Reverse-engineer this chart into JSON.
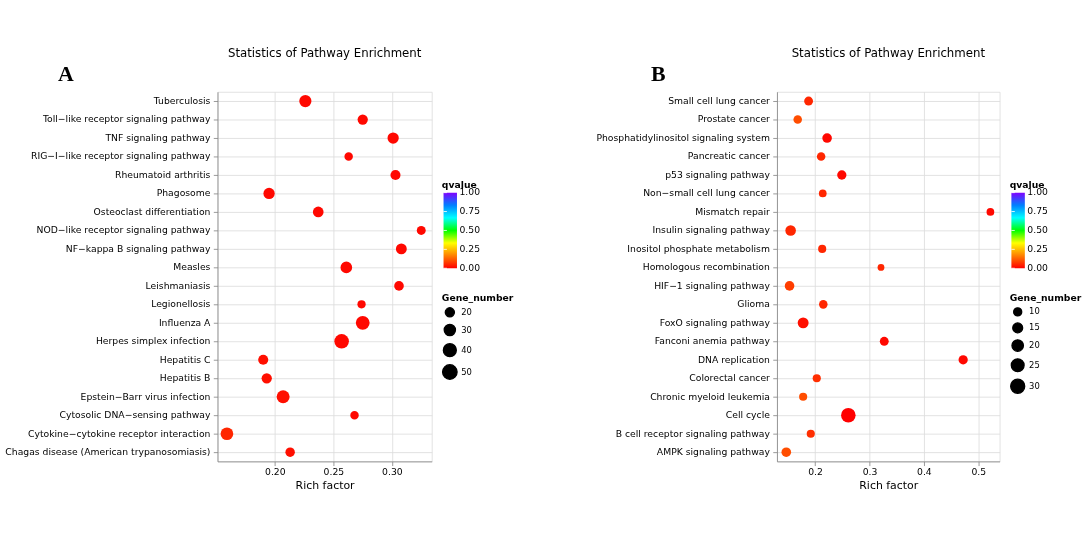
{
  "chart_data": [
    {
      "type": "bubble",
      "orientation": "horizontal",
      "title": "Statistics of Pathway Enrichment",
      "xlabel": "Rich factor",
      "clabel": "qvalue",
      "legend_title": "Gene_number",
      "annotations": [
        "A"
      ],
      "categories": [
        "Tuberculosis",
        "Toll−like receptor signaling pathway",
        "TNF signaling pathway",
        "RIG−I−like receptor signaling pathway",
        "Rheumatoid arthritis",
        "Phagosome",
        "Osteoclast differentiation",
        "NOD−like receptor signaling pathway",
        "NF−kappa B signaling pathway",
        "Measles",
        "Leishmaniasis",
        "Legionellosis",
        "Influenza A",
        "Herpes simplex infection",
        "Hepatitis C",
        "Hepatitis B",
        "Epstein−Barr virus infection",
        "Cytosolic DNA−sensing pathway",
        "Cytokine−cytokine receptor interaction",
        "Chagas disease (American trypanosomiasis)"
      ],
      "values": [
        0.226,
        0.275,
        0.301,
        0.263,
        0.303,
        0.195,
        0.237,
        0.325,
        0.308,
        0.261,
        0.306,
        0.274,
        0.275,
        0.257,
        0.19,
        0.193,
        0.207,
        0.268,
        0.159,
        0.213
      ],
      "sizes": [
        35,
        25,
        30,
        17,
        24,
        30,
        27,
        19,
        28,
        32,
        22,
        16,
        45,
        50,
        24,
        25,
        40,
        17,
        38,
        21
      ],
      "cvalues": [
        0.01,
        0.01,
        0.01,
        0.01,
        0.01,
        0.01,
        0.01,
        0.01,
        0.01,
        0.01,
        0.01,
        0.01,
        0.01,
        0.01,
        0.02,
        0.02,
        0.02,
        0.01,
        0.05,
        0.02
      ],
      "size_legend": [
        20,
        30,
        40,
        50
      ],
      "xlim": [
        0.151,
        0.334
      ],
      "xticks": [
        {
          "value": 0.2,
          "label": "0.20"
        },
        {
          "value": 0.25,
          "label": "0.25"
        },
        {
          "value": 0.3,
          "label": "0.30"
        }
      ],
      "clim": [
        0,
        1
      ],
      "cticks": [
        {
          "value": 0,
          "label": "0.00"
        },
        {
          "value": 0.25,
          "label": "0.25"
        },
        {
          "value": 0.5,
          "label": "0.50"
        },
        {
          "value": 0.75,
          "label": "0.75"
        },
        {
          "value": 1,
          "label": "1.00"
        }
      ],
      "grid": true
    },
    {
      "type": "bubble",
      "orientation": "horizontal",
      "title": "Statistics of Pathway Enrichment",
      "xlabel": "Rich factor",
      "clabel": "qvalue",
      "legend_title": "Gene_number",
      "annotations": [
        "B"
      ],
      "categories": [
        "Small cell lung cancer",
        "Prostate cancer",
        "Phosphatidylinositol signaling system",
        "Pancreatic cancer",
        "p53 signaling pathway",
        "Non−small cell lung cancer",
        "Mismatch repair",
        "Insulin signaling pathway",
        "Inositol phosphate metabolism",
        "Homologous recombination",
        "HIF−1 signaling pathway",
        "Glioma",
        "FoxO signaling pathway",
        "Fanconi anemia pathway",
        "DNA replication",
        "Colorectal cancer",
        "Chronic myeloid leukemia",
        "Cell cycle",
        "B cell receptor signaling pathway",
        "AMPK signaling pathway"
      ],
      "values": [
        0.188,
        0.168,
        0.222,
        0.211,
        0.249,
        0.214,
        0.522,
        0.155,
        0.213,
        0.321,
        0.153,
        0.215,
        0.178,
        0.327,
        0.472,
        0.203,
        0.178,
        0.261,
        0.192,
        0.147
      ],
      "sizes": [
        12,
        11,
        14,
        11,
        13,
        9,
        9,
        17,
        10,
        7,
        14,
        11,
        18,
        12,
        13,
        10,
        10,
        32,
        10,
        14
      ],
      "cvalues": [
        0.05,
        0.1,
        0.01,
        0.05,
        0.01,
        0.05,
        0.01,
        0.05,
        0.05,
        0.05,
        0.08,
        0.05,
        0.02,
        0.01,
        0.01,
        0.06,
        0.1,
        0.0,
        0.06,
        0.1
      ],
      "size_legend": [
        10,
        15,
        20,
        25,
        30
      ],
      "xlim": [
        0.13,
        0.539
      ],
      "xticks": [
        0.2,
        0.3,
        0.4,
        0.5
      ],
      "clim": [
        0,
        1
      ],
      "cticks": [
        {
          "value": 0,
          "label": "0.00"
        },
        {
          "value": 0.25,
          "label": "0.25"
        },
        {
          "value": 0.5,
          "label": "0.50"
        },
        {
          "value": 0.75,
          "label": "0.75"
        },
        {
          "value": 1,
          "label": "1.00"
        }
      ],
      "grid": true
    }
  ]
}
